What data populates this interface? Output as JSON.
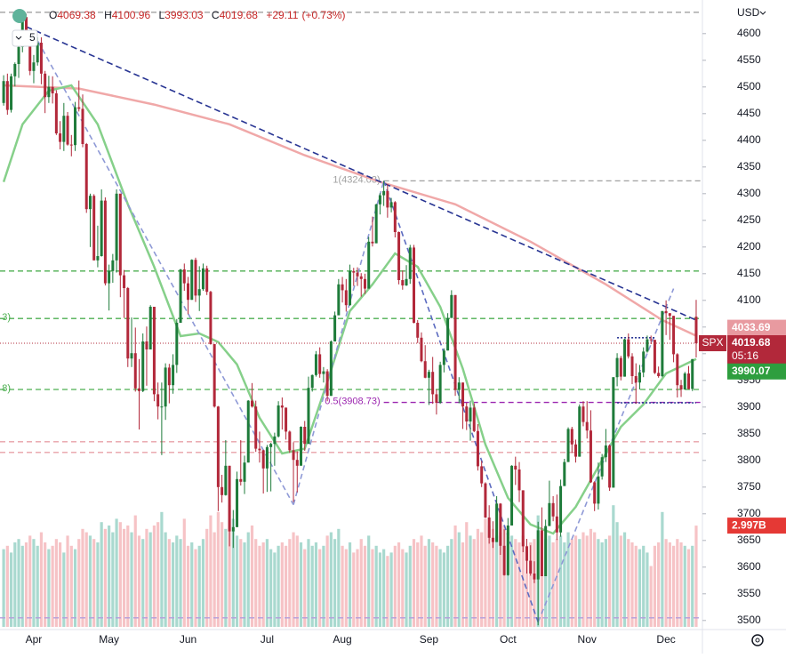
{
  "header": {
    "interval": "5",
    "prefixes": [
      "O",
      "H",
      "L",
      "C"
    ],
    "change": "+29.11",
    "change_pct": "(+0.73%)",
    "currency": "USD",
    "symbol": "SPX",
    "countdown": "05:16"
  },
  "chart_data": {
    "type": "candlestick",
    "categories": [
      null,
      null,
      null,
      null,
      null,
      null,
      null,
      null,
      "Apr",
      null,
      null,
      null,
      null,
      null,
      null,
      null,
      null,
      null,
      null,
      null,
      null,
      null,
      null,
      null,
      null,
      null,
      null,
      null,
      "May",
      null,
      null,
      null,
      null,
      null,
      null,
      null,
      null,
      null,
      null,
      null,
      null,
      null,
      null,
      null,
      null,
      null,
      null,
      null,
      null,
      "Jun",
      null,
      null,
      null,
      null,
      null,
      null,
      null,
      null,
      null,
      null,
      null,
      null,
      null,
      null,
      null,
      null,
      null,
      null,
      null,
      null,
      "Jul",
      null,
      null,
      null,
      null,
      null,
      null,
      null,
      null,
      null,
      null,
      null,
      null,
      null,
      null,
      null,
      null,
      null,
      null,
      null,
      "Aug",
      null,
      null,
      null,
      null,
      null,
      null,
      null,
      null,
      null,
      null,
      null,
      null,
      null,
      null,
      null,
      null,
      null,
      null,
      null,
      null,
      null,
      null,
      "Sep",
      null,
      null,
      null,
      null,
      null,
      null,
      null,
      null,
      null,
      null,
      null,
      null,
      null,
      null,
      null,
      null,
      null,
      null,
      null,
      null,
      "Oct",
      null,
      null,
      null,
      null,
      null,
      null,
      null,
      null,
      null,
      null,
      null,
      null,
      null,
      null,
      null,
      null,
      null,
      null,
      null,
      null,
      "Nov",
      null,
      null,
      null,
      null,
      null,
      null,
      null,
      null,
      null,
      null,
      null,
      null,
      null,
      null,
      null,
      null,
      null,
      null,
      null,
      null,
      "Dec",
      null,
      null,
      null,
      null,
      null,
      null,
      null,
      null
    ],
    "open": [
      4470,
      4511,
      4457,
      4520,
      4543,
      4575,
      4631,
      4602,
      4530,
      4546,
      4583,
      4525,
      4481,
      4500,
      4488,
      4413,
      4397,
      4446,
      4392,
      4391,
      4462,
      4459,
      4393,
      4271,
      4296,
      4175,
      4183,
      4287,
      4132,
      4155,
      4175,
      4300,
      4147,
      4123,
      3991,
      4001,
      3935,
      3930,
      4023,
      4008,
      4088,
      3924,
      3901,
      3901,
      3974,
      3941,
      3979,
      4058,
      4158,
      4132,
      4101,
      4176,
      4109,
      4121,
      4160,
      4116,
      4018,
      3901,
      3750,
      3735,
      3790,
      3667,
      3675,
      3765,
      3760,
      3796,
      3912,
      3901,
      3822,
      3819,
      3785,
      3825,
      3831,
      3845,
      3903,
      3899,
      3854,
      3819,
      3801,
      3790,
      3863,
      3831,
      3936,
      3960,
      3999,
      3962,
      3967,
      3921,
      4023,
      4072,
      4130,
      4119,
      4091,
      4155,
      4152,
      4145,
      4140,
      4122,
      4210,
      4207,
      4280,
      4297,
      4305,
      4274,
      4284,
      4228,
      4138,
      4128,
      4140,
      4199,
      4058,
      4030,
      3986,
      3955,
      3966,
      3924,
      3908,
      3979,
      4006,
      4067,
      4110,
      3932,
      3946,
      3901,
      3873,
      3899,
      3855,
      3789,
      3757,
      3693,
      3655,
      3647,
      3719,
      3640,
      3585,
      3678,
      3790,
      3783,
      3744,
      3639,
      3612,
      3588,
      3577,
      3669,
      3583,
      3677,
      3720,
      3695,
      3665,
      3752,
      3797,
      3859,
      3830,
      3807,
      3901,
      3872,
      3856,
      3759,
      3719,
      3770,
      3806,
      3828,
      3749,
      3956,
      3992,
      3957,
      4027,
      3995,
      3958,
      3946,
      3965,
      4004,
      4027,
      4026,
      3964,
      3958,
      4080,
      4076,
      4071,
      3999,
      3941,
      3933,
      3963,
      3934,
      4069.38
    ],
    "high": [
      4522,
      4525,
      4525,
      4546,
      4577,
      4637,
      4637,
      4603,
      4560,
      4593,
      4593,
      4530,
      4521,
      4520,
      4494,
      4436,
      4470,
      4453,
      4410,
      4472,
      4512,
      4486,
      4395,
      4300,
      4299,
      4240,
      4308,
      4293,
      4167,
      4187,
      4308,
      4300,
      4157,
      4125,
      4068,
      4049,
      3990,
      4038,
      4051,
      4091,
      4088,
      3946,
      3946,
      3982,
      3981,
      3999,
      4065,
      4159,
      4169,
      4144,
      4177,
      4180,
      4164,
      4169,
      4165,
      4118,
      4018,
      3902,
      3773,
      3838,
      3790,
      3707,
      3779,
      3838,
      3809,
      3913,
      3945,
      3912,
      3854,
      3820,
      3829,
      3833,
      3852,
      3911,
      3918,
      3899,
      3856,
      3834,
      3817,
      3864,
      3874,
      3957,
      3961,
      4005,
      4012,
      3975,
      3971,
      4025,
      4079,
      4140,
      4144,
      4140,
      4167,
      4161,
      4162,
      4151,
      4150,
      4219,
      4257,
      4281,
      4301,
      4324,
      4318,
      4292,
      4286,
      4229,
      4156,
      4166,
      4204,
      4204,
      4063,
      4040,
      4016,
      3970,
      3994,
      3933,
      3985,
      4010,
      4076,
      4119,
      4110,
      3956,
      3946,
      3908,
      3912,
      3907,
      3868,
      3799,
      3759,
      3716,
      3686,
      3733,
      3720,
      3671,
      3692,
      3791,
      3807,
      3797,
      3744,
      3653,
      3641,
      3611,
      3685,
      3712,
      3689,
      3762,
      3733,
      3736,
      3764,
      3803,
      3862,
      3863,
      3839,
      3905,
      3911,
      3911,
      3894,
      3761,
      3796,
      3812,
      3859,
      3830,
      3956,
      4001,
      3996,
      4028,
      4038,
      4001,
      3982,
      3979,
      4012,
      4034,
      4034,
      4026,
      3976,
      4080,
      4100,
      4076,
      4071,
      4001,
      3951,
      3966,
      3977,
      3990,
      4100.96
    ],
    "low": [
      4465,
      4448,
      4452,
      4501,
      4517,
      4565,
      4581,
      4522,
      4507,
      4540,
      4505,
      4451,
      4470,
      4469,
      4410,
      4383,
      4380,
      4390,
      4370,
      4380,
      4454,
      4387,
      4264,
      4200,
      4175,
      4162,
      4182,
      4128,
      4081,
      4133,
      4152,
      4106,
      4067,
      3975,
      3975,
      3929,
      3858,
      3928,
      3940,
      4008,
      3911,
      3877,
      3810,
      3876,
      3907,
      3925,
      3964,
      4058,
      4118,
      4074,
      4101,
      4097,
      4080,
      4118,
      4110,
      4017,
      3899,
      3705,
      3721,
      3734,
      3639,
      3636,
      3675,
      3753,
      3737,
      3796,
      3899,
      3816,
      3796,
      3738,
      3741,
      3742,
      3790,
      3843,
      3858,
      3839,
      3814,
      3722,
      3740,
      3791,
      3818,
      3831,
      3929,
      3957,
      3955,
      3946,
      3911,
      3921,
      4023,
      4072,
      4096,
      4079,
      4090,
      4127,
      4127,
      4107,
      4112,
      4122,
      4201,
      4207,
      4261,
      4277,
      4255,
      4265,
      4218,
      4130,
      4120,
      4127,
      4131,
      4057,
      4020,
      3984,
      3954,
      3904,
      3906,
      3886,
      3906,
      3965,
      4006,
      4067,
      3921,
      3907,
      3859,
      3857,
      3837,
      3853,
      3781,
      3750,
      3692,
      3644,
      3636,
      3647,
      3623,
      3584,
      3584,
      3678,
      3754,
      3722,
      3628,
      3588,
      3584,
      3570,
      3491,
      3583,
      3583,
      3677,
      3686,
      3651,
      3657,
      3752,
      3797,
      3814,
      3796,
      3807,
      3864,
      3841,
      3758,
      3705,
      3708,
      3764,
      3797,
      3743,
      3749,
      3939,
      3950,
      3957,
      3991,
      3943,
      3906,
      3933,
      3956,
      4002,
      4018,
      3962,
      3955,
      3956,
      4035,
      4026,
      3984,
      3918,
      3919,
      3933,
      3933,
      3930,
      3993.03
    ],
    "close": [
      4511,
      4457,
      4520,
      4543,
      4575,
      4631,
      4602,
      4530,
      4546,
      4583,
      4525,
      4481,
      4500,
      4488,
      4413,
      4397,
      4446,
      4392,
      4391,
      4462,
      4459,
      4393,
      4271,
      4296,
      4175,
      4183,
      4287,
      4132,
      4155,
      4175,
      4300,
      4147,
      4123,
      3991,
      4001,
      3935,
      3930,
      4023,
      4008,
      4088,
      3924,
      3901,
      3901,
      3974,
      3941,
      3979,
      4058,
      4158,
      4132,
      4101,
      4176,
      4109,
      4121,
      4160,
      4116,
      4018,
      3901,
      3750,
      3735,
      3790,
      3667,
      3675,
      3765,
      3760,
      3796,
      3912,
      3901,
      3822,
      3819,
      3785,
      3825,
      3831,
      3845,
      3903,
      3899,
      3854,
      3819,
      3801,
      3790,
      3863,
      3831,
      3936,
      3960,
      3999,
      3962,
      3967,
      3921,
      4023,
      4072,
      4130,
      4119,
      4091,
      4155,
      4152,
      4145,
      4140,
      4122,
      4210,
      4207,
      4280,
      4297,
      4305,
      4274,
      4284,
      4228,
      4138,
      4128,
      4140,
      4199,
      4058,
      4030,
      3986,
      3955,
      3966,
      3924,
      3908,
      3979,
      4006,
      4067,
      4110,
      3932,
      3946,
      3901,
      3873,
      3899,
      3855,
      3789,
      3757,
      3693,
      3655,
      3647,
      3719,
      3640,
      3585,
      3678,
      3790,
      3783,
      3744,
      3639,
      3612,
      3588,
      3577,
      3669,
      3583,
      3677,
      3720,
      3695,
      3665,
      3752,
      3797,
      3859,
      3830,
      3807,
      3901,
      3872,
      3856,
      3759,
      3719,
      3770,
      3806,
      3828,
      3749,
      3956,
      3992,
      3957,
      4027,
      3995,
      3958,
      3946,
      3965,
      4004,
      4027,
      4026,
      3964,
      3958,
      4080,
      4076,
      4071,
      3999,
      3941,
      3933,
      3963,
      3934,
      3990,
      4019.68
    ],
    "up_color": "#1e7b3a",
    "down_color": "#b2283a",
    "volume": {
      "up_color": "#a9d9cf",
      "down_color": "#f6c3c6",
      "last_label": "2.997B",
      "values": [
        2.3,
        2.4,
        2.2,
        2.5,
        2.6,
        2.4,
        2.5,
        2.7,
        2.6,
        2.4,
        2.8,
        2.5,
        2.3,
        2.4,
        2.6,
        2.5,
        2.2,
        2.7,
        2.4,
        2.3,
        2.6,
        2.9,
        2.8,
        2.7,
        2.6,
        2.5,
        3.1,
        2.9,
        3.0,
        2.8,
        3.2,
        3.1,
        2.9,
        3.0,
        2.8,
        3.3,
        2.7,
        2.6,
        2.9,
        2.8,
        3.0,
        3.1,
        3.4,
        2.8,
        2.6,
        2.5,
        2.7,
        2.6,
        3.2,
        2.4,
        2.5,
        2.3,
        2.4,
        2.6,
        2.9,
        3.3,
        2.8,
        3.4,
        3.1,
        2.9,
        3.6,
        3.2,
        2.7,
        2.6,
        2.5,
        2.8,
        3.0,
        2.6,
        2.4,
        2.5,
        2.6,
        2.3,
        2.2,
        2.4,
        2.5,
        2.4,
        2.6,
        2.8,
        2.7,
        2.5,
        2.3,
        2.6,
        2.4,
        2.5,
        2.3,
        2.4,
        2.7,
        2.8,
        2.6,
        2.9,
        2.4,
        2.3,
        2.5,
        2.2,
        2.3,
        2.6,
        2.4,
        2.7,
        2.3,
        2.4,
        2.2,
        2.3,
        2.1,
        2.2,
        2.4,
        2.5,
        2.3,
        2.2,
        2.4,
        2.6,
        2.5,
        2.7,
        2.4,
        2.6,
        2.5,
        2.4,
        2.3,
        2.2,
        2.4,
        2.6,
        3.0,
        2.8,
        2.5,
        3.1,
        2.7,
        2.6,
        2.9,
        2.8,
        3.2,
        3.0,
        2.9,
        2.7,
        2.8,
        3.0,
        2.8,
        2.7,
        2.6,
        2.5,
        2.7,
        2.4,
        2.5,
        2.6,
        3.3,
        2.8,
        2.6,
        2.7,
        2.5,
        2.6,
        2.7,
        2.5,
        2.8,
        2.6,
        2.7,
        2.6,
        2.8,
        2.7,
        2.9,
        2.8,
        2.6,
        2.5,
        2.6,
        2.7,
        3.6,
        3.1,
        2.7,
        2.8,
        2.6,
        2.5,
        2.4,
        2.3,
        2.4,
        2.2,
        1.8,
        2.4,
        2.5,
        3.4,
        2.6,
        2.5,
        2.4,
        2.6,
        2.5,
        2.4,
        2.3,
        2.4,
        2.997
      ]
    },
    "overlays": [
      {
        "color": "#f0a8a8",
        "x": [
          0,
          20,
          40,
          60,
          80,
          100,
          120,
          140,
          160,
          175,
          184
        ],
        "values": [
          4503,
          4497,
          4467,
          4430,
          4372,
          4322,
          4280,
          4210,
          4130,
          4063,
          4033.69
        ]
      },
      {
        "color": "#86d08a",
        "x": [
          0,
          5,
          12,
          18,
          25,
          33,
          40,
          47,
          52,
          57,
          62,
          68,
          74,
          80,
          86,
          92,
          98,
          104,
          110,
          116,
          122,
          128,
          134,
          140,
          146,
          152,
          158,
          164,
          170,
          176,
          184
        ],
        "values": [
          4322,
          4430,
          4493,
          4503,
          4430,
          4280,
          4163,
          4033,
          4038,
          4022,
          3980,
          3880,
          3813,
          3822,
          3947,
          4080,
          4130,
          4188,
          4163,
          4088,
          3972,
          3830,
          3730,
          3680,
          3663,
          3713,
          3788,
          3863,
          3905,
          3963,
          3990.07
        ]
      }
    ],
    "drawings": [
      {
        "color": "#283593",
        "dash": "7,4",
        "from": [
          6,
          4613
        ],
        "to": [
          184,
          4063
        ]
      },
      {
        "color": "#8e99d6",
        "dash": "6,4",
        "from": [
          8,
          4600
        ],
        "to": [
          77,
          3717
        ]
      },
      {
        "color": "#8e99d6",
        "dash": "6,4",
        "from": [
          77,
          3717
        ],
        "to": [
          101,
          4324
        ]
      },
      {
        "color": "#5c6bc0",
        "dash": "6,4",
        "from": [
          101,
          4324
        ],
        "to": [
          142,
          3497
        ]
      },
      {
        "color": "#8e99d6",
        "dash": "6,4",
        "from": [
          142,
          3497
        ],
        "to": [
          178,
          4122
        ]
      },
      {
        "color": "#283593",
        "dash": "2,2",
        "from": [
          163,
          4030
        ],
        "to": [
          173,
          4030
        ]
      },
      {
        "color": "#283593",
        "dash": "2,2",
        "from": [
          163,
          3908
        ],
        "to": [
          184,
          3908
        ]
      }
    ],
    "levels": [
      {
        "value": 4640,
        "color": "#a0a0a0"
      },
      {
        "value": 4324.03,
        "label": "1(4324.03)",
        "start": 101,
        "color": "#a0a0a0"
      },
      {
        "value": 4155,
        "color": "#4caf50"
      },
      {
        "value": 4066,
        "label": "3)",
        "color": "#4caf50"
      },
      {
        "value": 3933,
        "label": "8)",
        "color": "#4caf50"
      },
      {
        "value": 3908.73,
        "label": "0.5(3908.73)",
        "start": 101,
        "color": "#9c27b0"
      },
      {
        "value": 3835,
        "color": "#e8a0a8"
      },
      {
        "value": 3815,
        "color": "#e8a0a8"
      },
      {
        "value": 3505,
        "color": "#b39ddb"
      }
    ],
    "ylim": [
      3483,
      4663
    ],
    "yticks": [
      3500,
      3550,
      3600,
      3650,
      3700,
      3750,
      3800,
      3850,
      3900,
      3950,
      4000,
      4050,
      4100,
      4150,
      4200,
      4250,
      4300,
      4350,
      4400,
      4450,
      4500,
      4550,
      4600
    ],
    "grid": false
  }
}
